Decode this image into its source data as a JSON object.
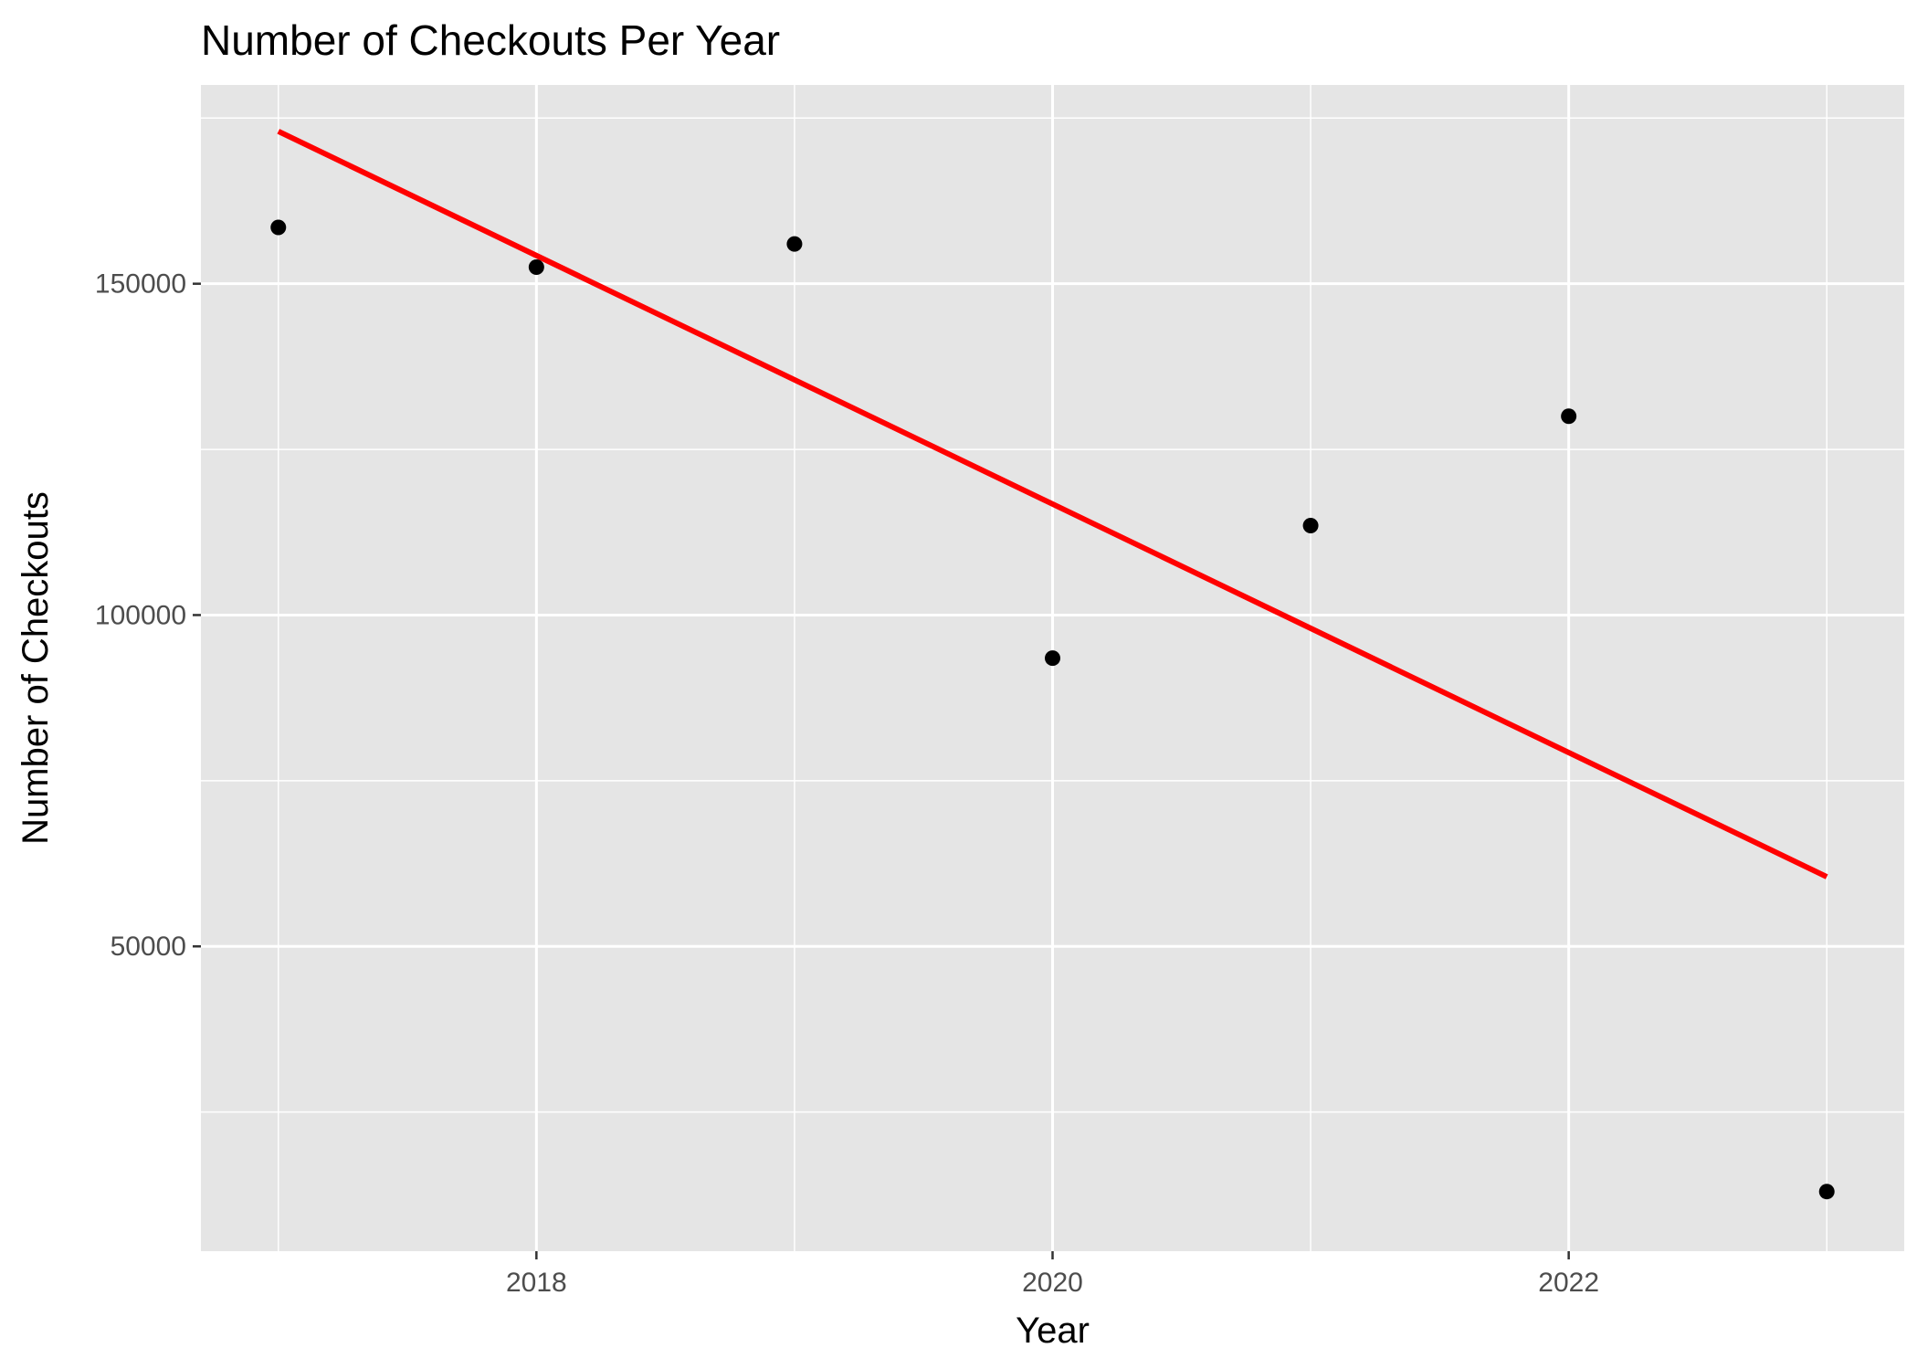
{
  "chart_data": {
    "type": "scatter",
    "title": "Number of Checkouts Per Year",
    "xlabel": "Year",
    "ylabel": "Number of Checkouts",
    "xlim": [
      2016.7,
      2023.3
    ],
    "ylim": [
      4000,
      180000
    ],
    "x_ticks": [
      2018,
      2020,
      2022
    ],
    "x_tick_labels": [
      "2018",
      "2020",
      "2022"
    ],
    "y_ticks": [
      50000,
      100000,
      150000
    ],
    "y_tick_labels": [
      "50000",
      "100000",
      "150000"
    ],
    "x_minor_grid": [
      2017,
      2019,
      2021,
      2023
    ],
    "y_minor_grid": [
      25000,
      75000,
      125000,
      175000
    ],
    "grid": true,
    "legend": "none",
    "series": [
      {
        "type": "scatter",
        "color": "#000000",
        "x": [
          2017,
          2018,
          2019,
          2020,
          2021,
          2022,
          2023
        ],
        "y": [
          158500,
          152500,
          156000,
          93500,
          113500,
          130000,
          13000
        ]
      },
      {
        "type": "line",
        "color": "#ff0000",
        "x": [
          2017,
          2023
        ],
        "y": [
          173000,
          60500
        ]
      }
    ],
    "colors": {
      "panel_background": "#e5e5e5",
      "grid_line": "#ffffff",
      "tick_mark": "#333333",
      "tick_text": "#4d4d4d"
    }
  }
}
